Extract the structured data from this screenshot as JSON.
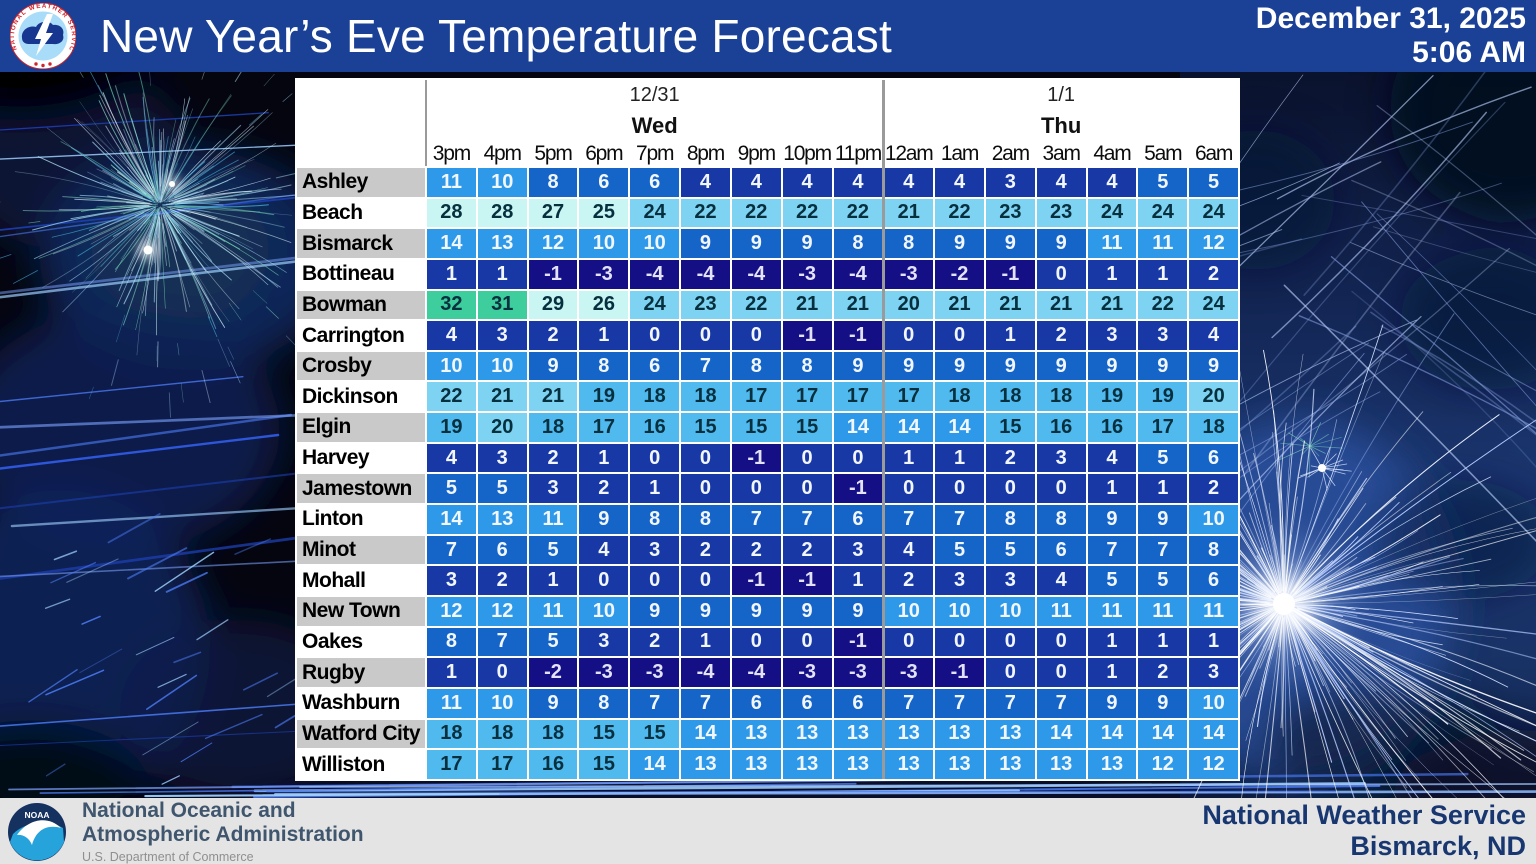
{
  "header": {
    "title": "New Year’s Eve Temperature Forecast",
    "date": "December 31, 2025",
    "time": "5:06 AM",
    "bar_color": "#1B4196"
  },
  "footer": {
    "agency_line1": "National Oceanic and",
    "agency_line2": "Atmospheric Administration",
    "department": "U.S. Department of Commerce",
    "office_line1": "National Weather Service",
    "office_line2": "Bismarck, ND"
  },
  "chart_data": {
    "type": "heatmap",
    "title": "New Year’s Eve Temperature Forecast",
    "unit": "F",
    "day_groups": [
      {
        "date": "12/31",
        "day": "Wed",
        "hours": [
          "3pm",
          "4pm",
          "5pm",
          "6pm",
          "7pm",
          "8pm",
          "9pm",
          "10pm",
          "11pm"
        ]
      },
      {
        "date": "1/1",
        "day": "Thu",
        "hours": [
          "12am",
          "1am",
          "2am",
          "3am",
          "4am",
          "5am",
          "6am"
        ]
      }
    ],
    "rows": [
      {
        "city": "Ashley",
        "temps": [
          11,
          10,
          8,
          6,
          6,
          4,
          4,
          4,
          4,
          4,
          4,
          3,
          4,
          4,
          5,
          5
        ]
      },
      {
        "city": "Beach",
        "temps": [
          28,
          28,
          27,
          25,
          24,
          22,
          22,
          22,
          22,
          21,
          22,
          23,
          23,
          24,
          24,
          24
        ]
      },
      {
        "city": "Bismarck",
        "temps": [
          14,
          13,
          12,
          10,
          10,
          9,
          9,
          9,
          8,
          8,
          9,
          9,
          9,
          11,
          11,
          12
        ]
      },
      {
        "city": "Bottineau",
        "temps": [
          1,
          1,
          -1,
          -3,
          -4,
          -4,
          -4,
          -3,
          -4,
          -3,
          -2,
          -1,
          0,
          1,
          1,
          2
        ]
      },
      {
        "city": "Bowman",
        "temps": [
          32,
          31,
          29,
          26,
          24,
          23,
          22,
          21,
          21,
          20,
          21,
          21,
          21,
          21,
          22,
          24
        ]
      },
      {
        "city": "Carrington",
        "temps": [
          4,
          3,
          2,
          1,
          0,
          0,
          0,
          -1,
          -1,
          0,
          0,
          1,
          2,
          3,
          3,
          4
        ]
      },
      {
        "city": "Crosby",
        "temps": [
          10,
          10,
          9,
          8,
          6,
          7,
          8,
          8,
          9,
          9,
          9,
          9,
          9,
          9,
          9,
          9
        ]
      },
      {
        "city": "Dickinson",
        "temps": [
          22,
          21,
          21,
          19,
          18,
          18,
          17,
          17,
          17,
          17,
          18,
          18,
          18,
          19,
          19,
          20
        ]
      },
      {
        "city": "Elgin",
        "temps": [
          19,
          20,
          18,
          17,
          16,
          15,
          15,
          15,
          14,
          14,
          14,
          15,
          16,
          16,
          17,
          18
        ]
      },
      {
        "city": "Harvey",
        "temps": [
          4,
          3,
          2,
          1,
          0,
          0,
          -1,
          0,
          0,
          1,
          1,
          2,
          3,
          4,
          5,
          6
        ]
      },
      {
        "city": "Jamestown",
        "temps": [
          5,
          5,
          3,
          2,
          1,
          0,
          0,
          0,
          -1,
          0,
          0,
          0,
          0,
          1,
          1,
          2
        ]
      },
      {
        "city": "Linton",
        "temps": [
          14,
          13,
          11,
          9,
          8,
          8,
          7,
          7,
          6,
          7,
          7,
          8,
          8,
          9,
          9,
          10
        ]
      },
      {
        "city": "Minot",
        "temps": [
          7,
          6,
          5,
          4,
          3,
          2,
          2,
          2,
          3,
          4,
          5,
          5,
          6,
          7,
          7,
          8
        ]
      },
      {
        "city": "Mohall",
        "temps": [
          3,
          2,
          1,
          0,
          0,
          0,
          -1,
          -1,
          1,
          2,
          3,
          3,
          4,
          5,
          5,
          6
        ]
      },
      {
        "city": "New Town",
        "temps": [
          12,
          12,
          11,
          10,
          9,
          9,
          9,
          9,
          9,
          10,
          10,
          10,
          11,
          11,
          11,
          11
        ]
      },
      {
        "city": "Oakes",
        "temps": [
          8,
          7,
          5,
          3,
          2,
          1,
          0,
          0,
          -1,
          0,
          0,
          0,
          0,
          1,
          1,
          1
        ]
      },
      {
        "city": "Rugby",
        "temps": [
          1,
          0,
          -2,
          -3,
          -3,
          -4,
          -4,
          -3,
          -3,
          -3,
          -1,
          0,
          0,
          1,
          2,
          3
        ]
      },
      {
        "city": "Washburn",
        "temps": [
          11,
          10,
          9,
          8,
          7,
          7,
          6,
          6,
          6,
          7,
          7,
          7,
          7,
          9,
          9,
          10
        ]
      },
      {
        "city": "Watford City",
        "temps": [
          18,
          18,
          18,
          15,
          15,
          14,
          13,
          13,
          13,
          13,
          13,
          13,
          14,
          14,
          14,
          14
        ]
      },
      {
        "city": "Williston",
        "temps": [
          17,
          17,
          16,
          15,
          14,
          13,
          13,
          13,
          13,
          13,
          13,
          13,
          13,
          13,
          12,
          12
        ]
      }
    ],
    "row_label_colors": [
      "#c9c9c9",
      "#ffffff"
    ],
    "color_scale": [
      {
        "min": 30,
        "bg": "#3ECD9D",
        "text": "#07303F"
      },
      {
        "min": 25,
        "bg": "#C9F5F3",
        "text": "#07303F"
      },
      {
        "min": 20,
        "bg": "#7FD3F2",
        "text": "#07303F"
      },
      {
        "min": 15,
        "bg": "#50B9ED",
        "text": "#07303F"
      },
      {
        "min": 10,
        "bg": "#2D99E8",
        "text": "#F2F6FF"
      },
      {
        "min": 5,
        "bg": "#1565C8",
        "text": "#F2F6FF"
      },
      {
        "min": 0,
        "bg": "#1838A6",
        "text": "#F2F6FF"
      },
      {
        "min": -99,
        "bg": "#140F85",
        "text": "#E4E2F8"
      }
    ]
  }
}
